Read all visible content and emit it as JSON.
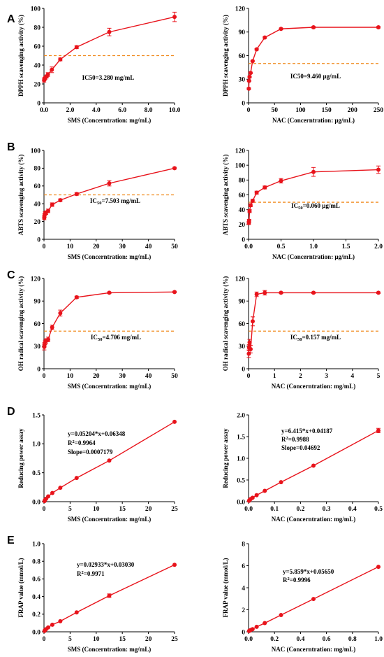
{
  "panel_labels": [
    "A",
    "B",
    "C",
    "D",
    "E"
  ],
  "chart_data": [
    {
      "type": "line",
      "panel": "A",
      "xlabel": "SMS (Concerntration: mg/mL)",
      "ylabel": "DPPH scavenging activity (%)",
      "xlim": [
        0,
        10
      ],
      "ylim": [
        0,
        100
      ],
      "xticks": [
        "0.0",
        "2.0",
        "4.0",
        "6.0",
        "8.0",
        "10.0"
      ],
      "yticks": [
        "0",
        "20",
        "40",
        "60",
        "80",
        "100"
      ],
      "x": [
        0.01,
        0.05,
        0.1,
        0.2,
        0.3,
        0.6,
        1.25,
        2.5,
        5,
        10
      ],
      "y": [
        24,
        25.5,
        26.5,
        28,
        30,
        35,
        46,
        59,
        75,
        91
      ],
      "err": [
        2,
        1.5,
        1.5,
        1.5,
        2,
        3,
        1.5,
        1.5,
        4,
        5
      ],
      "reference_y": 50,
      "annotation": "IC50=3.280 mg/mL"
    },
    {
      "type": "line",
      "panel": "A",
      "xlabel": "NAC (Concerntration: μg/mL)",
      "ylabel": "DPPH scavenging activity (%)",
      "xlim": [
        0,
        250
      ],
      "ylim": [
        0,
        120
      ],
      "xticks": [
        "0",
        "50",
        "100",
        "150",
        "200",
        "250"
      ],
      "yticks": [
        "0",
        "30",
        "60",
        "90",
        "120"
      ],
      "x": [
        0.5,
        1,
        2,
        3.9,
        7.8,
        15.6,
        31.25,
        62.5,
        125,
        250
      ],
      "y": [
        18,
        28,
        33,
        38,
        53,
        68,
        83,
        94,
        96,
        96
      ],
      "err": [
        1,
        1,
        1,
        1,
        1,
        1,
        1,
        1,
        1,
        1
      ],
      "reference_y": 50,
      "annotation": "IC50=9.460 μg/mL"
    },
    {
      "type": "line",
      "panel": "B",
      "xlabel": "SMS (Concerntration: mg/mL)",
      "ylabel": "ABTS scavenging activity (%)",
      "xlim": [
        0,
        50
      ],
      "ylim": [
        0,
        100
      ],
      "xticks": [
        "0",
        "10",
        "20",
        "30",
        "40",
        "50"
      ],
      "yticks": [
        "0",
        "20",
        "40",
        "60",
        "80",
        "100"
      ],
      "x": [
        0.1,
        0.2,
        0.4,
        0.8,
        1.6,
        3.125,
        6.25,
        12.5,
        25,
        50
      ],
      "y": [
        24,
        27,
        29,
        30,
        32,
        39,
        44,
        51,
        63,
        80
      ],
      "err": [
        2,
        2,
        2,
        2,
        2,
        2,
        1.5,
        1.5,
        3,
        1
      ],
      "reference_y": 50,
      "annotation": "IC50=7.503 mg/mL"
    },
    {
      "type": "line",
      "panel": "B",
      "xlabel": "NAC (Concerntration: μg/mL)",
      "ylabel": "ABTS scavenging activity (%)",
      "xlim": [
        0,
        2
      ],
      "ylim": [
        0,
        120
      ],
      "xticks": [
        "0.0",
        "0.5",
        "1.0",
        "1.5",
        "2.0"
      ],
      "yticks": [
        "0",
        "20",
        "40",
        "60",
        "80",
        "100",
        "120"
      ],
      "x": [
        0.004,
        0.008,
        0.016,
        0.031,
        0.0625,
        0.125,
        0.25,
        0.5,
        1,
        2
      ],
      "y": [
        22,
        25,
        38,
        46,
        52,
        63,
        70,
        79,
        91,
        94
      ],
      "err": [
        2,
        2,
        2,
        2,
        2,
        2,
        2,
        3,
        6,
        5
      ],
      "reference_y": 50,
      "annotation": "IC50=0.060 μg/mL"
    },
    {
      "type": "line",
      "panel": "C",
      "xlabel": "SMS (Concerntration: mg/mL)",
      "ylabel": "OH radical scavenging activity (%)",
      "xlim": [
        0,
        50
      ],
      "ylim": [
        0,
        120
      ],
      "xticks": [
        "0",
        "10",
        "20",
        "30",
        "40",
        "50"
      ],
      "yticks": [
        "0",
        "30",
        "60",
        "90",
        "120"
      ],
      "x": [
        0.1,
        0.2,
        0.4,
        0.8,
        1.6,
        3.125,
        6.25,
        12.5,
        25,
        50
      ],
      "y": [
        29,
        32,
        35,
        37,
        39,
        55,
        74,
        95,
        101,
        102
      ],
      "err": [
        4,
        3,
        3,
        3,
        3,
        3,
        4,
        1.5,
        1,
        1
      ],
      "reference_y": 50,
      "annotation": "IC50=4.706 mg/mL"
    },
    {
      "type": "line",
      "panel": "C",
      "xlabel": "NAC (Concerntration: mg/mL)",
      "ylabel": "OH radical scavenging activity (%)",
      "xlim": [
        0,
        5
      ],
      "ylim": [
        0,
        120
      ],
      "xticks": [
        "0",
        "1",
        "2",
        "3",
        "4",
        "5"
      ],
      "yticks": [
        "0",
        "30",
        "60",
        "90",
        "120"
      ],
      "x": [
        0.01,
        0.02,
        0.04,
        0.08,
        0.16,
        0.3125,
        0.625,
        1.25,
        2.5,
        5
      ],
      "y": [
        20,
        28,
        35,
        26,
        63,
        99,
        101,
        101,
        101,
        101
      ],
      "err": [
        5,
        4,
        4,
        5,
        6,
        3,
        3,
        1,
        1,
        1
      ],
      "reference_y": 50,
      "annotation": "IC50=0.157 mg/mL"
    },
    {
      "type": "line",
      "panel": "D",
      "xlabel": "SMS (Concerntration: mg/mL)",
      "ylabel": "Reducing power assay",
      "xlim": [
        0,
        25
      ],
      "ylim": [
        0,
        1.5
      ],
      "xticks": [
        "0",
        "5",
        "10",
        "15",
        "20",
        "25"
      ],
      "yticks": [
        "0.0",
        "0.5",
        "1.0",
        "1.5"
      ],
      "x": [
        0.1,
        0.2,
        0.4,
        0.8,
        1.6,
        3.125,
        6.25,
        12.5,
        25
      ],
      "y": [
        0.01,
        0.03,
        0.05,
        0.09,
        0.15,
        0.24,
        0.41,
        0.71,
        1.38
      ],
      "annotation_lines": [
        "y=0.05204*x+0.06348",
        "R2=0.9964",
        "Slope=0.0007179"
      ]
    },
    {
      "type": "line",
      "panel": "D",
      "xlabel": "NAC (Concerntration: mg/mL)",
      "ylabel": "Reducing power assay",
      "xlim": [
        0,
        0.5
      ],
      "ylim": [
        0,
        2.0
      ],
      "xticks": [
        "0.0",
        "0.1",
        "0.2",
        "0.3",
        "0.4",
        "0.5"
      ],
      "yticks": [
        "0.0",
        "0.5",
        "1.0",
        "1.5",
        "2.0"
      ],
      "x": [
        0.002,
        0.004,
        0.008,
        0.0156,
        0.031,
        0.0625,
        0.125,
        0.25,
        0.5
      ],
      "y": [
        0.02,
        0.04,
        0.06,
        0.09,
        0.15,
        0.25,
        0.45,
        0.83,
        1.64
      ],
      "err": [
        0,
        0,
        0,
        0,
        0,
        0,
        0,
        0,
        0.05
      ],
      "annotation_lines": [
        "y=6.415*x+0.04187",
        "R2=0.9988",
        "Slope=0.04692"
      ]
    },
    {
      "type": "line",
      "panel": "E",
      "xlabel": "SMS (Concerntration: mg/mL)",
      "ylabel": "FRAP value (mmol/L)",
      "xlim": [
        0,
        25
      ],
      "ylim": [
        0,
        1.0
      ],
      "xticks": [
        "0",
        "5",
        "10",
        "15",
        "20",
        "25"
      ],
      "yticks": [
        "0.0",
        "0.2",
        "0.4",
        "0.6",
        "0.8",
        "1.0"
      ],
      "x": [
        0.1,
        0.2,
        0.4,
        0.8,
        1.6,
        3.125,
        6.25,
        12.5,
        25
      ],
      "y": [
        0.01,
        0.02,
        0.03,
        0.05,
        0.08,
        0.12,
        0.22,
        0.41,
        0.76
      ],
      "err": [
        0,
        0,
        0,
        0,
        0,
        0,
        0,
        0.02,
        0
      ],
      "annotation_lines": [
        "y=0.02933*x+0.03030",
        "R2=0.9971"
      ]
    },
    {
      "type": "line",
      "panel": "E",
      "xlabel": "NAC (Concerntration: mg/mL)",
      "ylabel": "FRAP value (mmol/L)",
      "xlim": [
        0,
        1.0
      ],
      "ylim": [
        0,
        8
      ],
      "xticks": [
        "0.0",
        "0.2",
        "0.4",
        "0.6",
        "0.8",
        "1.0"
      ],
      "yticks": [
        "0",
        "2",
        "4",
        "6",
        "8"
      ],
      "x": [
        0.004,
        0.008,
        0.016,
        0.031,
        0.0625,
        0.125,
        0.25,
        0.5,
        1
      ],
      "y": [
        0.07,
        0.11,
        0.16,
        0.24,
        0.45,
        0.79,
        1.52,
        2.98,
        5.9
      ],
      "annotation_lines": [
        "y=5.859*x+0.05650",
        "R2=0.9996"
      ]
    }
  ]
}
